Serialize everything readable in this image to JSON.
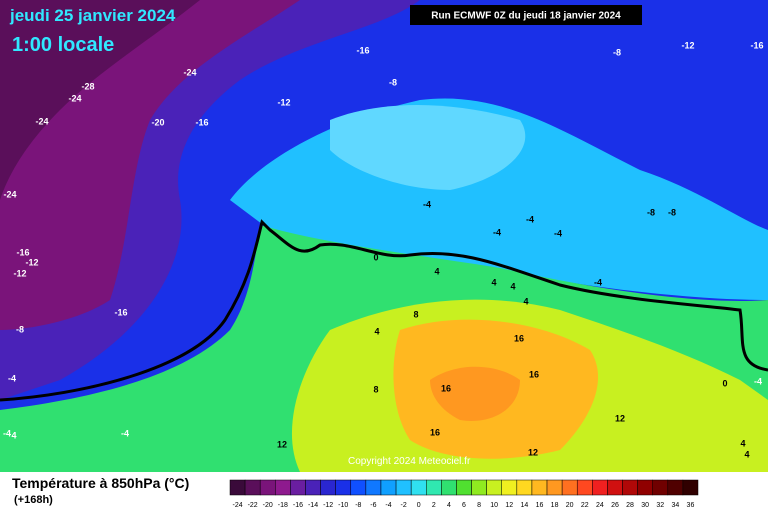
{
  "header": {
    "date": "jeudi 25 janvier 2024",
    "time": "1:00 locale",
    "run": "Run ECMWF 0Z du jeudi 18 janvier 2024"
  },
  "map": {
    "copyright": "Copyright 2024 Meteociel.fr",
    "contour_labels": [
      -16,
      -8,
      -12,
      -16,
      -24,
      -28,
      -24,
      -8,
      -12,
      -24,
      -20,
      -16,
      -24,
      -4,
      -4,
      -4,
      -8,
      -8,
      -4,
      -16,
      -12,
      -12,
      0,
      4,
      4,
      4,
      4,
      -4,
      -16,
      8,
      -8,
      4,
      16,
      16,
      16,
      8,
      0,
      -4,
      -4,
      12,
      16,
      -4,
      4,
      -4,
      12,
      12,
      4,
      4
    ]
  },
  "legend": {
    "title": "Température à 850hPa (°C)",
    "subtitle": "(+168h)",
    "levels": [
      -24,
      -22,
      -20,
      -18,
      -16,
      -14,
      -12,
      -10,
      -8,
      -6,
      -4,
      -2,
      0,
      2,
      4,
      6,
      8,
      10,
      12,
      14,
      16,
      18,
      20,
      22,
      24,
      26,
      28,
      30,
      32,
      34,
      36
    ],
    "colors": [
      "#3a0a3a",
      "#5a0f5a",
      "#7a147a",
      "#8e1a8e",
      "#6a1ea0",
      "#4a22b8",
      "#2a26d0",
      "#1a30e8",
      "#1050ff",
      "#1078ff",
      "#10a0ff",
      "#20c0ff",
      "#30e0f0",
      "#30e8b0",
      "#30e070",
      "#50e030",
      "#90ea20",
      "#c8f020",
      "#f0f020",
      "#ffd820",
      "#ffb820",
      "#ff9820",
      "#ff7020",
      "#ff4820",
      "#f02020",
      "#d01010",
      "#b00808",
      "#900000",
      "#700000",
      "#500000",
      "#300000"
    ]
  }
}
